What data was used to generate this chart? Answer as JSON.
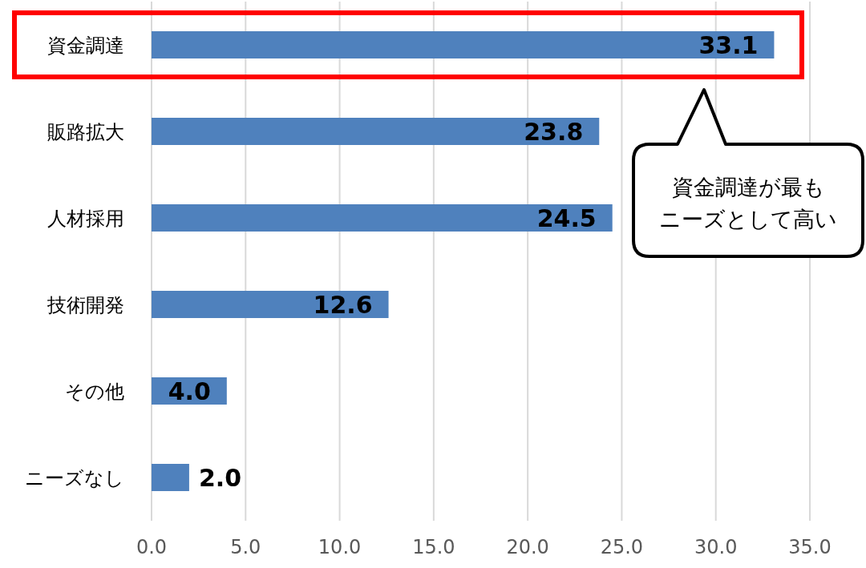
{
  "chart_data": {
    "type": "bar",
    "orientation": "horizontal",
    "categories": [
      "資金調達",
      "販路拡大",
      "人材採用",
      "技術開発",
      "その他",
      "ニーズなし"
    ],
    "values": [
      33.1,
      23.8,
      24.5,
      12.6,
      4.0,
      2.0
    ],
    "value_labels": [
      "33.1",
      "23.8",
      "24.5",
      "12.6",
      "4.0",
      "2.0"
    ],
    "color": "#4f81bd",
    "xlim": [
      0,
      35
    ],
    "xticks": [
      {
        "value": 0,
        "label": "0.0"
      },
      {
        "value": 5,
        "label": "5.0"
      },
      {
        "value": 10,
        "label": "10.0"
      },
      {
        "value": 15,
        "label": "15.0"
      },
      {
        "value": 20,
        "label": "20.0"
      },
      {
        "value": 25,
        "label": "25.0"
      },
      {
        "value": 30,
        "label": "30.0"
      },
      {
        "value": 35,
        "label": "35.0"
      }
    ],
    "grid": "x",
    "annotations": [
      "資金調達が最もニーズとして高い"
    ]
  }
}
